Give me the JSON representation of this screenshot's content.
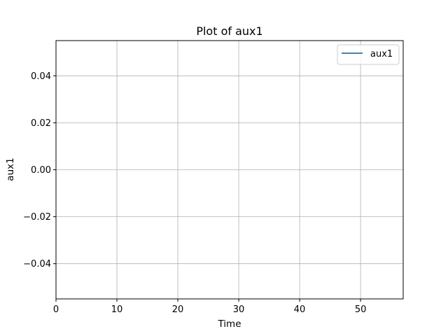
{
  "chart_data": {
    "type": "line",
    "title": "Plot of aux1",
    "xlabel": "Time",
    "ylabel": "aux1",
    "xlim": [
      0,
      57
    ],
    "ylim": [
      -0.055,
      0.055
    ],
    "x_ticks": [
      0,
      10,
      20,
      30,
      40,
      50
    ],
    "x_tick_labels": [
      "0",
      "10",
      "20",
      "30",
      "40",
      "50"
    ],
    "y_ticks": [
      -0.04,
      -0.02,
      0.0,
      0.02,
      0.04
    ],
    "y_tick_labels": [
      "−0.04",
      "−0.02",
      "0.00",
      "0.02",
      "0.04"
    ],
    "grid": true,
    "legend_position": "top-right",
    "series": [
      {
        "name": "aux1",
        "color": "#1f77b4",
        "x": [],
        "y": []
      }
    ]
  }
}
